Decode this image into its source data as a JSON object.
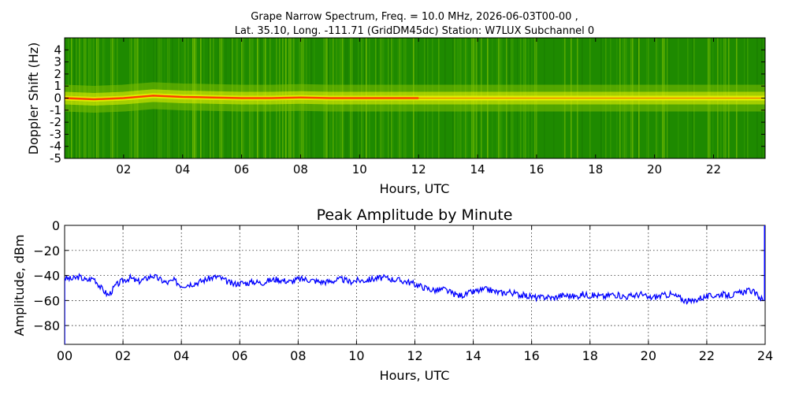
{
  "figure": {
    "title_line1": "Grape Narrow Spectrum, Freq. = 10.0 MHz, 2026-06-03T00-00 ,",
    "title_line2": "Lat.  35.10, Long. -111.71 (GridDM45dc) Station: W7LUX Subchannel 0"
  },
  "chart_data": [
    {
      "type": "heatmap",
      "title": "",
      "xlabel": "Hours, UTC",
      "ylabel": "Doppler Shift (Hz)",
      "xlim": [
        0,
        23.75
      ],
      "ylim": [
        -5,
        5
      ],
      "x_ticks": [
        2,
        4,
        6,
        8,
        10,
        12,
        14,
        16,
        18,
        20,
        22
      ],
      "x_tick_labels": [
        "02",
        "04",
        "06",
        "08",
        "10",
        "12",
        "14",
        "16",
        "18",
        "20",
        "22"
      ],
      "y_ticks": [
        -5,
        -4,
        -3,
        -2,
        -1,
        0,
        1,
        2,
        3,
        4
      ],
      "y_tick_labels": [
        "-5",
        "-4",
        "-3",
        "-2",
        "-1",
        "0",
        "1",
        "2",
        "3",
        "4"
      ],
      "colors": {
        "background": "#1e8a00",
        "mid": "#7fbf00",
        "signal": "#e8f000",
        "peak": "#ff3000"
      },
      "signal_trace": [
        {
          "x": 0.0,
          "y": 0.0
        },
        {
          "x": 1.0,
          "y": -0.1
        },
        {
          "x": 2.0,
          "y": 0.0
        },
        {
          "x": 3.0,
          "y": 0.2
        },
        {
          "x": 4.0,
          "y": 0.1
        },
        {
          "x": 5.0,
          "y": 0.05
        },
        {
          "x": 6.0,
          "y": 0.0
        },
        {
          "x": 7.0,
          "y": 0.0
        },
        {
          "x": 8.0,
          "y": 0.05
        },
        {
          "x": 9.0,
          "y": 0.0
        },
        {
          "x": 10.0,
          "y": 0.0
        },
        {
          "x": 11.0,
          "y": 0.0
        },
        {
          "x": 12.0,
          "y": 0.0
        },
        {
          "x": 13.0,
          "y": 0.0
        },
        {
          "x": 14.0,
          "y": 0.0
        },
        {
          "x": 16.0,
          "y": 0.0
        },
        {
          "x": 18.0,
          "y": 0.0
        },
        {
          "x": 20.0,
          "y": 0.0
        },
        {
          "x": 22.0,
          "y": 0.0
        },
        {
          "x": 23.75,
          "y": 0.0
        }
      ],
      "grid": false,
      "legend": "none"
    },
    {
      "type": "line",
      "title": "Peak Amplitude by Minute",
      "xlabel": "Hours, UTC",
      "ylabel": "Amplitude, dBm",
      "xlim": [
        0,
        24
      ],
      "ylim": [
        -95,
        0
      ],
      "x_ticks": [
        0,
        2,
        4,
        6,
        8,
        10,
        12,
        14,
        16,
        18,
        20,
        22,
        24
      ],
      "x_tick_labels": [
        "00",
        "02",
        "04",
        "06",
        "08",
        "10",
        "12",
        "14",
        "16",
        "18",
        "20",
        "22",
        "24"
      ],
      "y_ticks": [
        0,
        -20,
        -40,
        -60,
        -80
      ],
      "y_tick_labels": [
        "0",
        "−20",
        "−40",
        "−60",
        "−80"
      ],
      "grid": true,
      "legend": "none",
      "series": [
        {
          "color": "#0000ff",
          "x": [
            0.0,
            0.25,
            0.5,
            0.75,
            1.0,
            1.25,
            1.5,
            1.75,
            2.0,
            2.25,
            2.5,
            2.75,
            3.0,
            3.25,
            3.5,
            3.75,
            4.0,
            4.25,
            4.5,
            4.75,
            5.0,
            5.25,
            5.5,
            5.75,
            6.0,
            6.25,
            6.5,
            6.75,
            7.0,
            7.25,
            7.5,
            7.75,
            8.0,
            8.25,
            8.5,
            8.75,
            9.0,
            9.25,
            9.5,
            9.75,
            10.0,
            10.25,
            10.5,
            10.75,
            11.0,
            11.25,
            11.5,
            11.75,
            12.0,
            12.25,
            12.5,
            12.75,
            13.0,
            13.25,
            13.5,
            13.75,
            14.0,
            14.25,
            14.5,
            14.75,
            15.0,
            15.25,
            15.5,
            15.75,
            16.0,
            16.25,
            16.5,
            16.75,
            17.0,
            17.25,
            17.5,
            17.75,
            18.0,
            18.25,
            18.5,
            18.75,
            19.0,
            19.25,
            19.5,
            19.75,
            20.0,
            20.25,
            20.5,
            20.75,
            21.0,
            21.25,
            21.5,
            21.75,
            22.0,
            22.25,
            22.5,
            22.75,
            23.0,
            23.25,
            23.5,
            23.75,
            23.95
          ],
          "values": [
            -42,
            -43,
            -41,
            -44,
            -42,
            -50,
            -56,
            -48,
            -44,
            -42,
            -45,
            -43,
            -40,
            -43,
            -46,
            -44,
            -48,
            -47,
            -46,
            -44,
            -42,
            -41,
            -44,
            -47,
            -46,
            -46,
            -45,
            -46,
            -44,
            -43,
            -44,
            -45,
            -43,
            -43,
            -44,
            -45,
            -45,
            -44,
            -43,
            -45,
            -44,
            -44,
            -43,
            -42,
            -42,
            -43,
            -44,
            -45,
            -47,
            -49,
            -51,
            -52,
            -51,
            -54,
            -56,
            -55,
            -53,
            -52,
            -51,
            -53,
            -54,
            -53,
            -55,
            -56,
            -57,
            -58,
            -57,
            -58,
            -56,
            -56,
            -57,
            -55,
            -56,
            -56,
            -57,
            -55,
            -56,
            -57,
            -56,
            -55,
            -58,
            -57,
            -56,
            -55,
            -57,
            -60,
            -61,
            -58,
            -57,
            -56,
            -55,
            -56,
            -55,
            -53,
            -52,
            -56,
            -60
          ]
        }
      ]
    }
  ]
}
